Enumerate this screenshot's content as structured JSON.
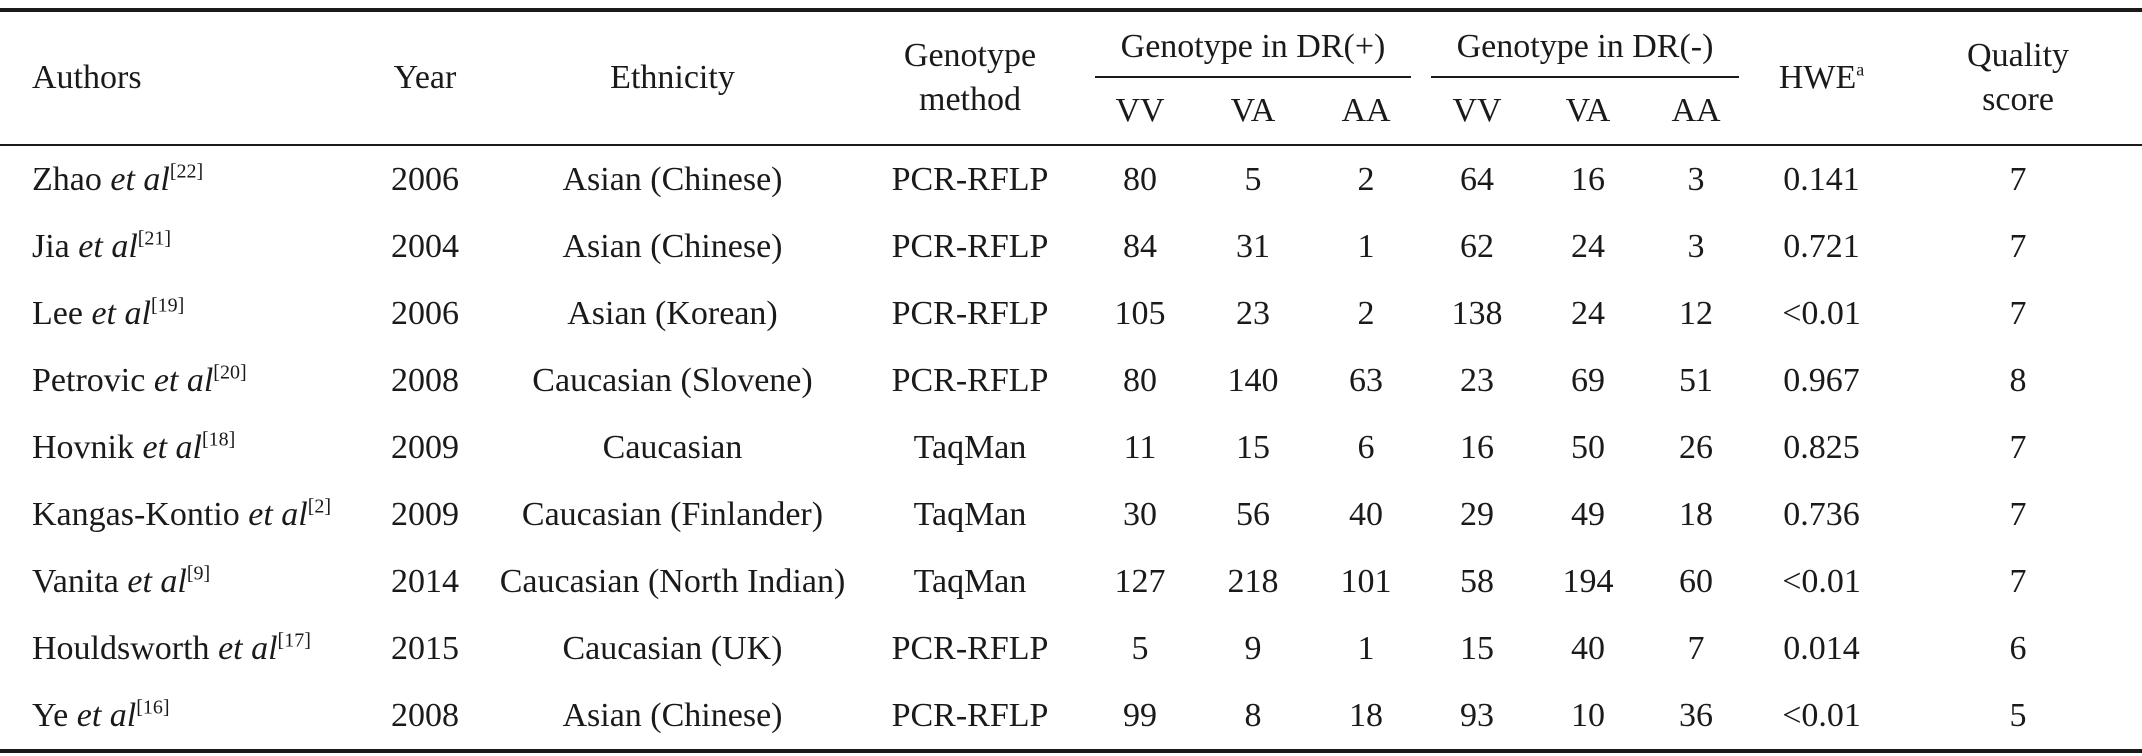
{
  "headers": {
    "authors": "Authors",
    "year": "Year",
    "ethnicity": "Ethnicity",
    "genotype_method": [
      "Genotype",
      "method"
    ],
    "group_dr_pos": "Genotype in DR(+)",
    "group_dr_neg": "Genotype in DR(-)",
    "hwe": "HWE",
    "hwe_sup": "a",
    "quality": [
      "Quality",
      "score"
    ],
    "sub": [
      "VV",
      "VA",
      "AA",
      "VV",
      "VA",
      "AA"
    ]
  },
  "et_al": "et al",
  "rows": [
    {
      "author": "Zhao",
      "ref": "[22]",
      "year": "2006",
      "ethnicity": "Asian (Chinese)",
      "method": "PCR-RFLP",
      "pos": [
        "80",
        "5",
        "2"
      ],
      "neg": [
        "64",
        "16",
        "3"
      ],
      "hwe": "0.141",
      "quality": "7"
    },
    {
      "author": "Jia",
      "ref": "[21]",
      "year": "2004",
      "ethnicity": "Asian (Chinese)",
      "method": "PCR-RFLP",
      "pos": [
        "84",
        "31",
        "1"
      ],
      "neg": [
        "62",
        "24",
        "3"
      ],
      "hwe": "0.721",
      "quality": "7"
    },
    {
      "author": "Lee",
      "ref": "[19]",
      "year": "2006",
      "ethnicity": "Asian (Korean)",
      "method": "PCR-RFLP",
      "pos": [
        "105",
        "23",
        "2"
      ],
      "neg": [
        "138",
        "24",
        "12"
      ],
      "hwe": "<0.01",
      "quality": "7"
    },
    {
      "author": "Petrovic",
      "ref": "[20]",
      "year": "2008",
      "ethnicity": "Caucasian (Slovene)",
      "method": "PCR-RFLP",
      "pos": [
        "80",
        "140",
        "63"
      ],
      "neg": [
        "23",
        "69",
        "51"
      ],
      "hwe": "0.967",
      "quality": "8"
    },
    {
      "author": "Hovnik",
      "ref": "[18]",
      "year": "2009",
      "ethnicity": "Caucasian",
      "method": "TaqMan",
      "pos": [
        "11",
        "15",
        "6"
      ],
      "neg": [
        "16",
        "50",
        "26"
      ],
      "hwe": "0.825",
      "quality": "7"
    },
    {
      "author": "Kangas-Kontio",
      "ref": "[2]",
      "year": "2009",
      "ethnicity": "Caucasian (Finlander)",
      "method": "TaqMan",
      "pos": [
        "30",
        "56",
        "40"
      ],
      "neg": [
        "29",
        "49",
        "18"
      ],
      "hwe": "0.736",
      "quality": "7"
    },
    {
      "author": "Vanita",
      "ref": "[9]",
      "year": "2014",
      "ethnicity": "Caucasian (North Indian)",
      "method": "TaqMan",
      "pos": [
        "127",
        "218",
        "101"
      ],
      "neg": [
        "58",
        "194",
        "60"
      ],
      "hwe": "<0.01",
      "quality": "7"
    },
    {
      "author": "Houldsworth",
      "ref": "[17]",
      "year": "2015",
      "ethnicity": "Caucasian (UK)",
      "method": "PCR-RFLP",
      "pos": [
        "5",
        "9",
        "1"
      ],
      "neg": [
        "15",
        "40",
        "7"
      ],
      "hwe": "0.014",
      "quality": "6"
    },
    {
      "author": "Ye",
      "ref": "[16]",
      "year": "2008",
      "ethnicity": "Asian (Chinese)",
      "method": "PCR-RFLP",
      "pos": [
        "99",
        "8",
        "18"
      ],
      "neg": [
        "93",
        "10",
        "36"
      ],
      "hwe": "<0.01",
      "quality": "5"
    }
  ]
}
